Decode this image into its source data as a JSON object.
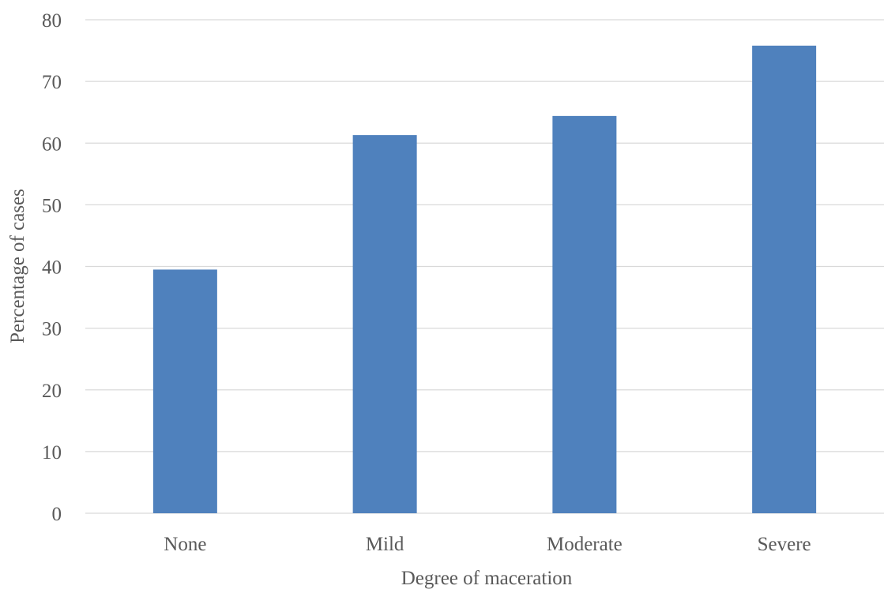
{
  "chart_data": {
    "type": "bar",
    "categories": [
      "None",
      "Mild",
      "Moderate",
      "Severe"
    ],
    "values": [
      39.5,
      61.3,
      64.4,
      75.8
    ],
    "title": "",
    "xlabel": "Degree of maceration",
    "ylabel": "Percentage of cases",
    "ylim": [
      0,
      80
    ],
    "yticks": [
      0,
      10,
      20,
      30,
      40,
      50,
      60,
      70,
      80
    ],
    "grid": true,
    "bar_color": "#4f81bd"
  }
}
